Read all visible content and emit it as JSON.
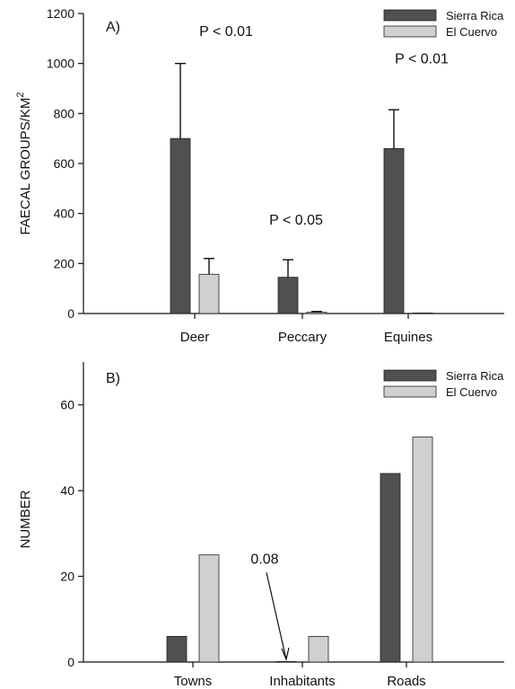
{
  "chart_data": [
    {
      "type": "bar",
      "panel_label": "A)",
      "ylabel_main": "FAECAL GROUPS/KM",
      "ylabel_sup": "2",
      "categories": [
        "Deer",
        "Peccary",
        "Equines"
      ],
      "series": [
        {
          "name": "Sierra Rica",
          "values": [
            700,
            145,
            660
          ],
          "errors": [
            300,
            70,
            155
          ]
        },
        {
          "name": "El Cuervo",
          "values": [
            157,
            5,
            2
          ],
          "errors": [
            63,
            3,
            0
          ]
        }
      ],
      "ylim": [
        0,
        1200
      ],
      "yticks": [
        0,
        200,
        400,
        600,
        800,
        1000,
        1200
      ],
      "annotations": [
        {
          "text": "P < 0.01",
          "category": 0,
          "y": 1110
        },
        {
          "text": "P < 0.05",
          "category": 1,
          "y": 355
        },
        {
          "text": "P < 0.01",
          "category": 2,
          "y": 1000
        }
      ],
      "legend_position": "top-right",
      "colors": {
        "Sierra Rica": "#505050",
        "El Cuervo": "#d0d0d0"
      }
    },
    {
      "type": "bar",
      "panel_label": "B)",
      "ylabel": "NUMBER",
      "categories": [
        "Towns",
        "Inhabitants",
        "Roads"
      ],
      "series": [
        {
          "name": "Sierra Rica",
          "values": [
            6,
            0.08,
            44
          ]
        },
        {
          "name": "El Cuervo",
          "values": [
            25,
            6,
            52.5
          ]
        }
      ],
      "ylim": [
        0,
        70
      ],
      "yticks": [
        0,
        20,
        40,
        60
      ],
      "annotations": [
        {
          "text": "0.08",
          "category": 1,
          "y": 23
        }
      ],
      "legend_position": "top-right",
      "colors": {
        "Sierra Rica": "#505050",
        "El Cuervo": "#d0d0d0"
      }
    }
  ]
}
